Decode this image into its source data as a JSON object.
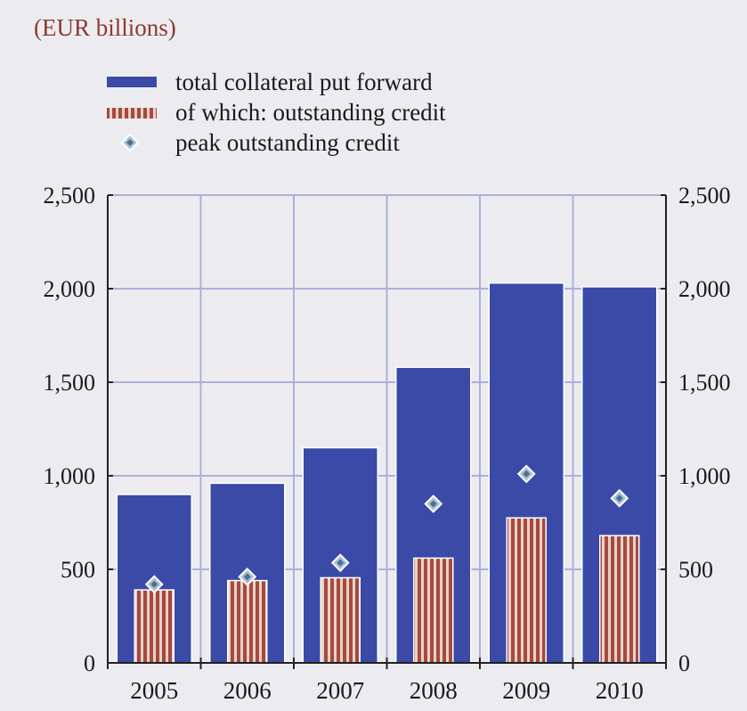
{
  "chart_data": {
    "type": "bar",
    "unit_label": "(EUR billions)",
    "categories": [
      "2005",
      "2006",
      "2007",
      "2008",
      "2009",
      "2010"
    ],
    "series": [
      {
        "name": "total collateral put forward",
        "kind": "bar",
        "values": [
          900,
          960,
          1150,
          1580,
          2030,
          2010
        ]
      },
      {
        "name": "of which: outstanding credit",
        "kind": "bar",
        "values": [
          390,
          440,
          455,
          560,
          775,
          680
        ]
      },
      {
        "name": "peak outstanding credit",
        "kind": "marker",
        "values": [
          420,
          460,
          535,
          850,
          1010,
          880
        ]
      }
    ],
    "ylim": [
      0,
      2500
    ],
    "yticks": [
      0,
      500,
      1000,
      1500,
      2000,
      2500
    ],
    "ytick_labels": [
      "0",
      "500",
      "1,000",
      "1,500",
      "2,000",
      "2,500"
    ],
    "grid": true,
    "legend_position": "top-left",
    "colors": {
      "total": "#3a4aa6",
      "credit_stripe": "#a8493f",
      "credit_gap": "#e6d3c8",
      "marker_fill": "#a9c0d6",
      "marker_center": "#4f6f8f",
      "grid": "#aab0dd",
      "background": "#ececf0"
    }
  }
}
